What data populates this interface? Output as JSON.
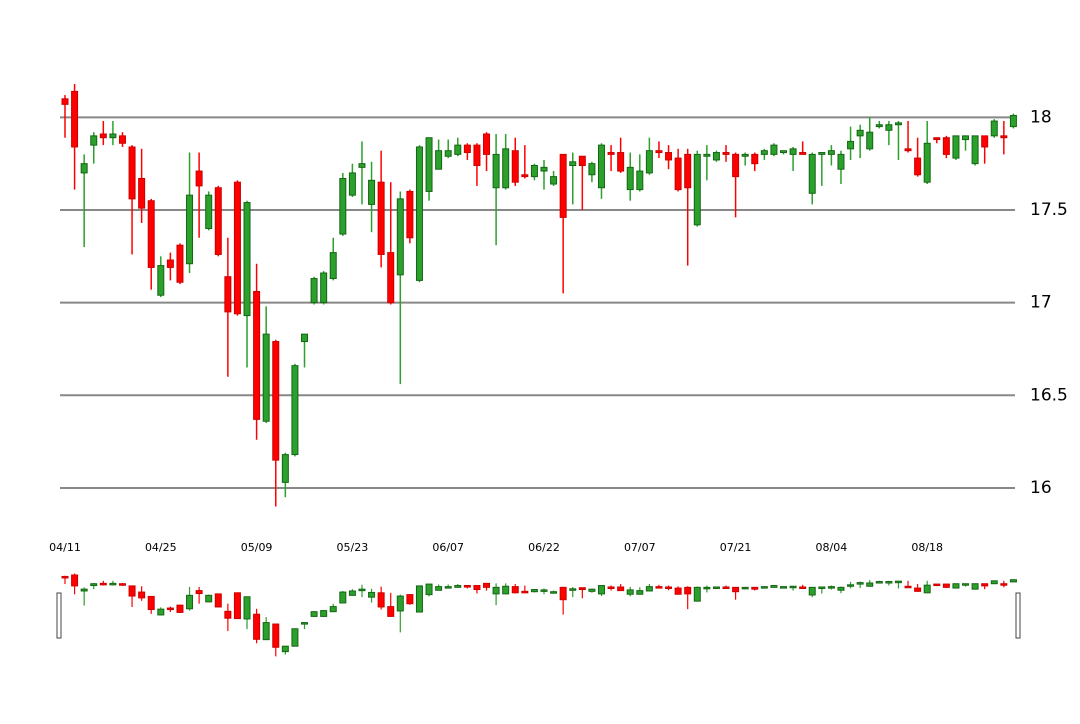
{
  "chart_data": {
    "type": "candlestick",
    "categories": [
      "04/11",
      null,
      null,
      null,
      null,
      null,
      null,
      null,
      null,
      null,
      "04/25",
      null,
      null,
      null,
      null,
      null,
      null,
      null,
      null,
      null,
      "05/09",
      null,
      null,
      null,
      null,
      null,
      null,
      null,
      null,
      null,
      "05/23",
      null,
      null,
      null,
      null,
      null,
      null,
      null,
      null,
      null,
      "06/07",
      null,
      null,
      null,
      null,
      null,
      null,
      null,
      null,
      null,
      "06/22",
      null,
      null,
      null,
      null,
      null,
      null,
      null,
      null,
      null,
      "07/07",
      null,
      null,
      null,
      null,
      null,
      null,
      null,
      null,
      null,
      "07/21",
      null,
      null,
      null,
      null,
      null,
      null,
      null,
      null,
      null,
      "08/04",
      null,
      null,
      null,
      null,
      null,
      null,
      null,
      null,
      null,
      "08/18",
      null,
      null,
      null,
      null,
      null,
      null,
      null,
      null,
      null
    ],
    "open": [
      18.1,
      18.14,
      17.7,
      17.85,
      17.91,
      17.89,
      17.9,
      17.84,
      17.67,
      17.55,
      17.04,
      17.23,
      17.31,
      17.21,
      17.71,
      17.4,
      17.62,
      17.14,
      17.65,
      16.93,
      17.06,
      16.36,
      16.79,
      16.03,
      16.18,
      16.79,
      17.0,
      17.0,
      17.13,
      17.37,
      17.58,
      17.73,
      17.53,
      17.65,
      17.27,
      17.15,
      17.6,
      17.12,
      17.6,
      17.72,
      17.79,
      17.8,
      17.85,
      17.85,
      17.91,
      17.62,
      17.62,
      17.82,
      17.69,
      17.68,
      17.71,
      17.64,
      17.8,
      17.74,
      17.79,
      17.69,
      17.62,
      17.81,
      17.81,
      17.61,
      17.61,
      17.7,
      17.82,
      17.81,
      17.78,
      17.8,
      17.42,
      17.79,
      17.77,
      17.81,
      17.8,
      17.79,
      17.8,
      17.8,
      17.8,
      17.81,
      17.8,
      17.81,
      17.59,
      17.8,
      17.8,
      17.72,
      17.83,
      17.9,
      17.83,
      17.95,
      17.93,
      17.96,
      17.83,
      17.78,
      17.65,
      17.89,
      17.89,
      17.78,
      17.88,
      17.75,
      17.9,
      17.9,
      17.9,
      17.95
    ],
    "high": [
      18.12,
      18.18,
      17.8,
      17.92,
      17.98,
      17.98,
      17.92,
      17.85,
      17.83,
      17.56,
      17.25,
      17.27,
      17.32,
      17.81,
      17.81,
      17.6,
      17.63,
      17.35,
      17.66,
      17.55,
      17.21,
      16.98,
      16.8,
      16.19,
      16.67,
      16.83,
      17.14,
      17.17,
      17.35,
      17.7,
      17.75,
      17.87,
      17.76,
      17.82,
      17.65,
      17.6,
      17.61,
      17.85,
      17.89,
      17.88,
      17.88,
      17.89,
      17.86,
      17.86,
      17.92,
      17.91,
      17.91,
      17.89,
      17.85,
      17.75,
      17.77,
      17.71,
      17.8,
      17.81,
      17.79,
      17.76,
      17.86,
      17.85,
      17.89,
      17.81,
      17.8,
      17.89,
      17.87,
      17.85,
      17.83,
      17.83,
      17.82,
      17.85,
      17.82,
      17.85,
      17.81,
      17.81,
      17.81,
      17.83,
      17.86,
      17.82,
      17.84,
      17.87,
      17.81,
      17.81,
      17.85,
      17.82,
      17.95,
      17.96,
      18.0,
      17.98,
      17.98,
      17.98,
      17.98,
      17.89,
      17.98,
      17.89,
      17.9,
      17.9,
      17.9,
      17.9,
      17.9,
      17.99,
      17.98,
      18.02
    ],
    "low": [
      17.89,
      17.61,
      17.3,
      17.75,
      17.85,
      17.85,
      17.84,
      17.26,
      17.43,
      17.07,
      17.03,
      17.12,
      17.1,
      17.16,
      17.35,
      17.39,
      17.25,
      16.6,
      16.93,
      16.65,
      16.26,
      16.35,
      15.9,
      15.95,
      16.17,
      16.65,
      16.99,
      16.99,
      17.12,
      17.36,
      17.57,
      17.53,
      17.38,
      17.19,
      16.99,
      16.56,
      17.32,
      17.11,
      17.55,
      17.72,
      17.78,
      17.79,
      17.77,
      17.63,
      17.71,
      17.31,
      17.61,
      17.63,
      17.67,
      17.66,
      17.61,
      17.63,
      17.05,
      17.53,
      17.5,
      17.65,
      17.56,
      17.71,
      17.7,
      17.55,
      17.6,
      17.69,
      17.78,
      17.72,
      17.6,
      17.2,
      17.41,
      17.66,
      17.76,
      17.76,
      17.46,
      17.74,
      17.71,
      17.77,
      17.79,
      17.8,
      17.71,
      17.8,
      17.53,
      17.63,
      17.74,
      17.64,
      17.77,
      17.78,
      17.82,
      17.94,
      17.85,
      17.77,
      17.81,
      17.68,
      17.64,
      17.86,
      17.78,
      17.77,
      17.82,
      17.74,
      17.75,
      17.89,
      17.8,
      17.94
    ],
    "close": [
      18.07,
      17.84,
      17.75,
      17.9,
      17.89,
      17.91,
      17.86,
      17.56,
      17.51,
      17.19,
      17.2,
      17.19,
      17.11,
      17.58,
      17.63,
      17.58,
      17.26,
      16.95,
      16.94,
      17.54,
      16.37,
      16.83,
      16.15,
      16.18,
      16.66,
      16.83,
      17.13,
      17.16,
      17.27,
      17.67,
      17.7,
      17.75,
      17.66,
      17.26,
      17.0,
      17.56,
      17.35,
      17.84,
      17.89,
      17.82,
      17.82,
      17.85,
      17.81,
      17.74,
      17.8,
      17.8,
      17.83,
      17.65,
      17.68,
      17.74,
      17.73,
      17.68,
      17.46,
      17.76,
      17.74,
      17.75,
      17.85,
      17.8,
      17.71,
      17.73,
      17.71,
      17.82,
      17.81,
      17.77,
      17.61,
      17.62,
      17.8,
      17.8,
      17.81,
      17.8,
      17.68,
      17.8,
      17.75,
      17.82,
      17.85,
      17.82,
      17.83,
      17.8,
      17.8,
      17.81,
      17.82,
      17.8,
      17.87,
      17.93,
      17.92,
      17.96,
      17.96,
      17.97,
      17.82,
      17.69,
      17.86,
      17.88,
      17.8,
      17.9,
      17.9,
      17.9,
      17.84,
      17.98,
      17.89,
      18.01
    ],
    "up_color": "#2ca02c",
    "down_color": "#ff0000",
    "ylim": [
      15.8,
      18.25
    ],
    "yticks": [
      16,
      16.5,
      17,
      17.5,
      18
    ],
    "grid": true
  }
}
